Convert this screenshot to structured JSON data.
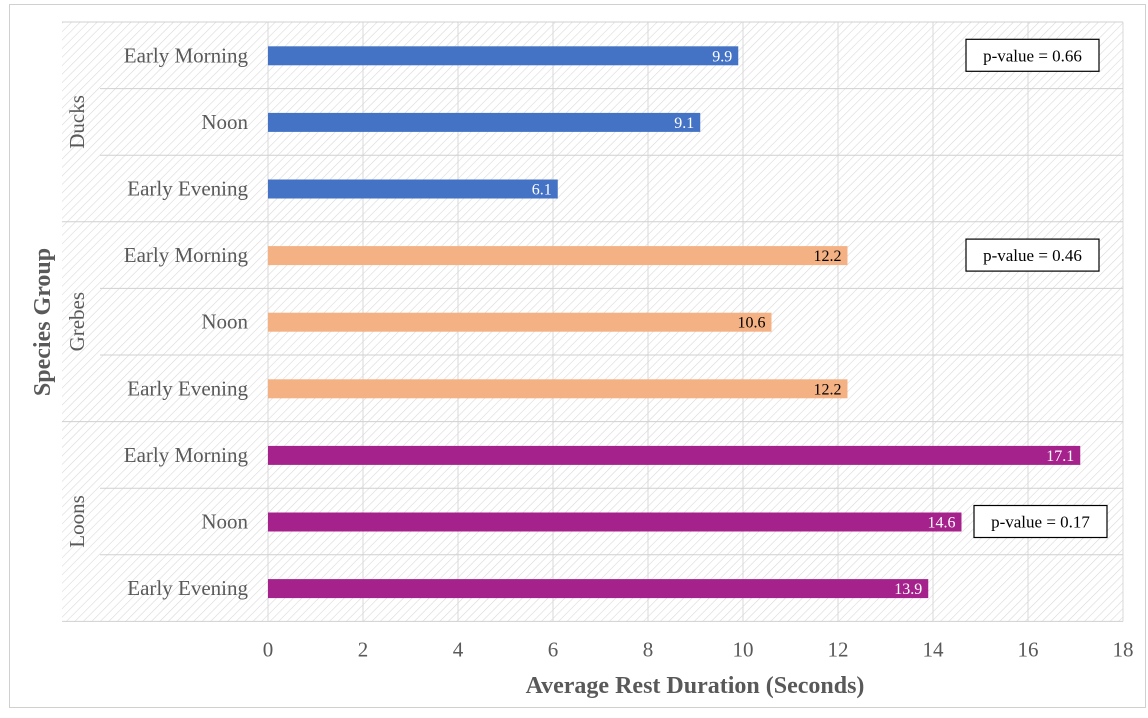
{
  "chart_data": {
    "type": "bar",
    "orientation": "horizontal",
    "xlabel": "Average Rest Duration (Seconds)",
    "ylabel": "Species Group",
    "xlim": [
      0,
      18
    ],
    "xticks": [
      "0",
      "2",
      "4",
      "6",
      "8",
      "10",
      "12",
      "14",
      "16",
      "18"
    ],
    "grid": true,
    "groups": [
      {
        "name": "Ducks",
        "color": "#4472C4",
        "label_color": "#ffffff",
        "pvalue": "p-value = 0.66",
        "categories": [
          "Early Morning",
          "Noon",
          "Early Evening"
        ],
        "values": [
          9.9,
          9.1,
          6.1
        ],
        "labels": [
          "9.9",
          "9.1",
          "6.1"
        ]
      },
      {
        "name": "Grebes",
        "color": "#F4B183",
        "label_color": "#000000",
        "pvalue": "p-value = 0.46",
        "categories": [
          "Early Morning",
          "Noon",
          "Early Evening"
        ],
        "values": [
          12.2,
          10.6,
          12.2
        ],
        "labels": [
          "12.2",
          "10.6",
          "12.2"
        ]
      },
      {
        "name": "Loons",
        "color": "#A5228C",
        "label_color": "#ffffff",
        "pvalue": "p-value = 0.17",
        "categories": [
          "Early Morning",
          "Noon",
          "Early Evening"
        ],
        "values": [
          17.1,
          14.6,
          13.9
        ],
        "labels": [
          "17.1",
          "14.6",
          "13.9"
        ]
      }
    ]
  }
}
